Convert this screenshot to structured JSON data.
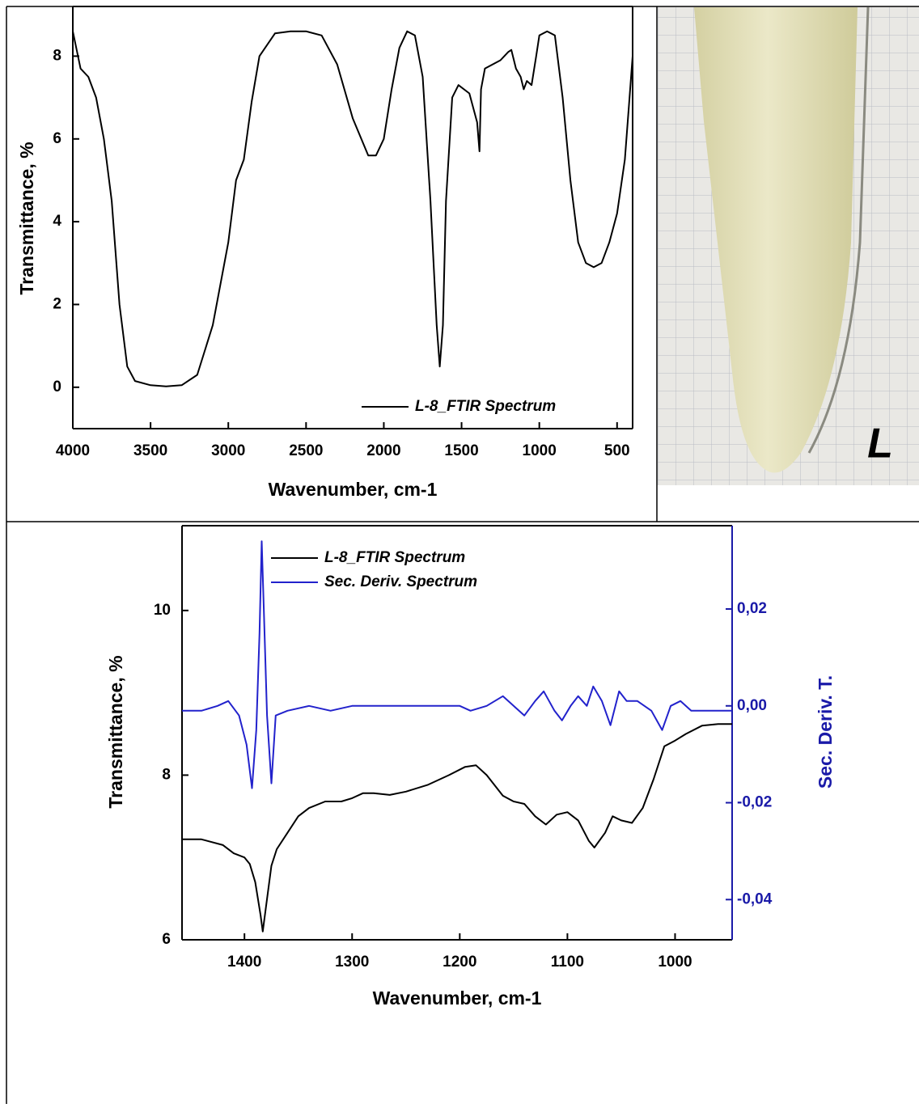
{
  "chart_data": [
    {
      "type": "line",
      "xlabel": "Wavenumber, cm-1",
      "ylabel": "Transmittance, %",
      "xlim": [
        4000,
        400
      ],
      "ylim": [
        -1,
        9.2
      ],
      "xticks": [
        4000,
        3500,
        3000,
        2500,
        2000,
        1500,
        1000,
        500
      ],
      "yticks": [
        0,
        2,
        4,
        6,
        8
      ],
      "legend": "lower right",
      "series": [
        {
          "name": "L-8_FTIR Spectrum",
          "color": "#000000",
          "x": [
            4000,
            3950,
            3900,
            3850,
            3800,
            3750,
            3700,
            3650,
            3600,
            3500,
            3400,
            3300,
            3200,
            3100,
            3000,
            2950,
            2900,
            2850,
            2800,
            2700,
            2600,
            2500,
            2400,
            2300,
            2200,
            2100,
            2050,
            2000,
            1950,
            1900,
            1850,
            1800,
            1750,
            1700,
            1660,
            1640,
            1620,
            1600,
            1560,
            1520,
            1450,
            1400,
            1385,
            1375,
            1350,
            1300,
            1250,
            1200,
            1180,
            1150,
            1120,
            1100,
            1080,
            1050,
            1020,
            1000,
            950,
            900,
            850,
            800,
            750,
            700,
            650,
            600,
            550,
            500,
            450,
            420,
            400
          ],
          "values": [
            8.6,
            7.7,
            7.5,
            7.0,
            6.0,
            4.5,
            2.0,
            0.5,
            0.15,
            0.05,
            0.02,
            0.05,
            0.3,
            1.5,
            3.5,
            5.0,
            5.5,
            6.9,
            8.0,
            8.55,
            8.6,
            8.6,
            8.5,
            7.8,
            6.5,
            5.6,
            5.6,
            6.0,
            7.2,
            8.2,
            8.6,
            8.5,
            7.5,
            4.5,
            1.5,
            0.5,
            1.5,
            4.5,
            7.0,
            7.3,
            7.1,
            6.4,
            5.7,
            7.2,
            7.7,
            7.8,
            7.9,
            8.1,
            8.15,
            7.7,
            7.5,
            7.2,
            7.4,
            7.3,
            8.0,
            8.5,
            8.6,
            8.5,
            7.0,
            5.0,
            3.5,
            3.0,
            2.9,
            3.0,
            3.5,
            4.2,
            5.5,
            7.0,
            8.0
          ]
        }
      ]
    },
    {
      "type": "line",
      "xlabel": "Wavenumber, cm-1",
      "ylabel": "Transmittance, %",
      "y2label": "Sec. Deriv. T.",
      "xlim": [
        1458,
        947
      ],
      "ylim": [
        6,
        11.03
      ],
      "y2lim": [
        -0.0483,
        0.0372
      ],
      "xticks": [
        1400,
        1300,
        1200,
        1100,
        1000
      ],
      "yticks": [
        6,
        8,
        10
      ],
      "y2ticks": [
        {
          "value": -0.04,
          "label": "-0,04"
        },
        {
          "value": -0.02,
          "label": "-0,02"
        },
        {
          "value": 0,
          "label": "0,00"
        },
        {
          "value": 0.02,
          "label": "0,02"
        }
      ],
      "y2color": "#1a1aa8",
      "legend": "upper left",
      "series": [
        {
          "name": "L-8_FTIR Spectrum",
          "color": "#000000",
          "x": [
            1458,
            1440,
            1420,
            1410,
            1400,
            1395,
            1390,
            1385,
            1383,
            1380,
            1375,
            1370,
            1360,
            1350,
            1340,
            1325,
            1310,
            1300,
            1290,
            1280,
            1265,
            1250,
            1230,
            1210,
            1195,
            1185,
            1175,
            1160,
            1150,
            1140,
            1130,
            1120,
            1110,
            1100,
            1090,
            1080,
            1075,
            1065,
            1058,
            1050,
            1040,
            1030,
            1020,
            1010,
            1000,
            990,
            975,
            960,
            947
          ],
          "values": [
            7.22,
            7.22,
            7.15,
            7.05,
            7.0,
            6.92,
            6.7,
            6.3,
            6.1,
            6.4,
            6.9,
            7.1,
            7.3,
            7.5,
            7.6,
            7.68,
            7.68,
            7.72,
            7.78,
            7.78,
            7.76,
            7.8,
            7.88,
            8.0,
            8.1,
            8.12,
            8.0,
            7.75,
            7.68,
            7.65,
            7.5,
            7.4,
            7.52,
            7.55,
            7.45,
            7.2,
            7.12,
            7.3,
            7.5,
            7.45,
            7.42,
            7.6,
            7.95,
            8.35,
            8.42,
            8.5,
            8.6,
            8.62,
            8.62
          ]
        },
        {
          "name": "Sec. Deriv. Spectrum",
          "color": "#2222cc",
          "axis": "y2",
          "x": [
            1458,
            1440,
            1425,
            1415,
            1405,
            1398,
            1393,
            1389,
            1386,
            1384,
            1382,
            1379,
            1375,
            1371,
            1360,
            1340,
            1320,
            1300,
            1260,
            1230,
            1200,
            1190,
            1175,
            1160,
            1150,
            1140,
            1130,
            1122,
            1112,
            1105,
            1097,
            1090,
            1082,
            1076,
            1068,
            1060,
            1052,
            1045,
            1035,
            1022,
            1012,
            1004,
            995,
            985,
            970,
            947
          ],
          "values": [
            -0.001,
            -0.001,
            0.0,
            0.001,
            -0.002,
            -0.008,
            -0.017,
            -0.005,
            0.015,
            0.034,
            0.02,
            -0.002,
            -0.016,
            -0.002,
            -0.001,
            0.0,
            -0.001,
            0.0,
            0.0,
            0.0,
            0.0,
            -0.001,
            0.0,
            0.002,
            0.0,
            -0.002,
            0.001,
            0.003,
            -0.001,
            -0.003,
            0.0,
            0.002,
            0.0,
            0.004,
            0.001,
            -0.004,
            0.003,
            0.001,
            0.001,
            -0.001,
            -0.005,
            0.0,
            0.001,
            -0.001,
            -0.001,
            -0.001
          ]
        }
      ]
    }
  ],
  "photo": {
    "label": "L"
  }
}
